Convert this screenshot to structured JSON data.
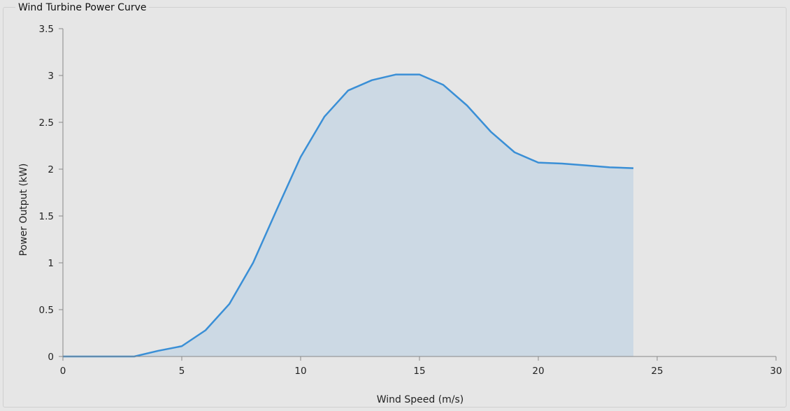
{
  "window": {
    "title": "Wind Turbine Power Curve"
  },
  "chart_data": {
    "type": "area",
    "title": "Wind Turbine Power Curve",
    "xlabel": "Wind Speed (m/s)",
    "ylabel": "Power Output (kW)",
    "xlim": [
      0,
      30
    ],
    "ylim": [
      0,
      3.5
    ],
    "x_ticks": [
      "0",
      "5",
      "10",
      "15",
      "20",
      "25",
      "30"
    ],
    "y_ticks": [
      "0",
      "0.5",
      "1",
      "1.5",
      "2",
      "2.5",
      "3",
      "3.5"
    ],
    "grid": false,
    "legend": "none",
    "colors": {
      "line": "#3a8fd6",
      "fill": "#ccd9e4"
    },
    "series": [
      {
        "x": [
          0,
          1,
          2,
          3,
          4,
          5,
          6,
          7,
          8,
          9,
          10,
          11,
          12,
          13,
          14,
          15,
          16,
          17,
          18,
          19,
          20,
          21,
          22,
          23,
          24
        ],
        "values": [
          0,
          0,
          0,
          0,
          0.06,
          0.11,
          0.28,
          0.56,
          1.0,
          1.57,
          2.13,
          2.56,
          2.84,
          2.95,
          3.01,
          3.01,
          2.9,
          2.68,
          2.4,
          2.18,
          2.07,
          2.06,
          2.04,
          2.02,
          2.01
        ]
      }
    ]
  }
}
